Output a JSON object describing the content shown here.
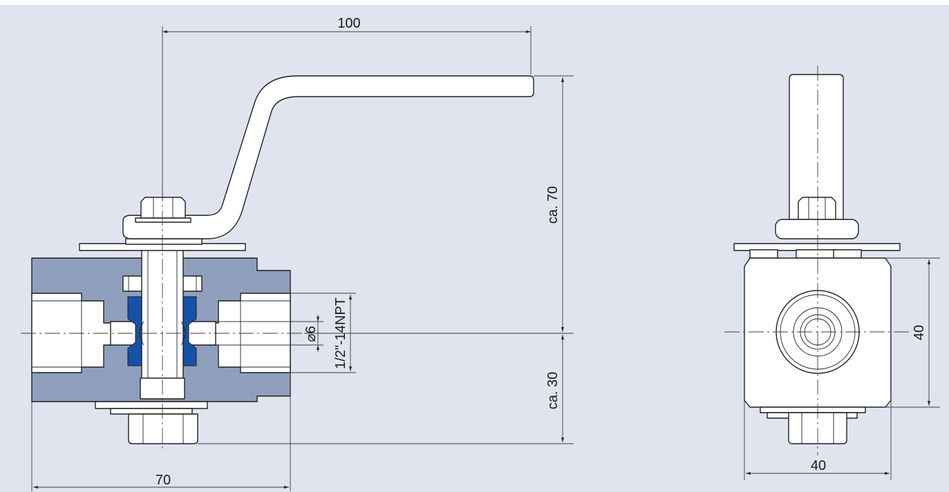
{
  "colors": {
    "background": "#dfe4ef",
    "valve_body": "#8f9fbe",
    "seat_seal": "#1652a8",
    "line": "#1f1f1f"
  },
  "dimensions": {
    "handle_length": "100",
    "height_above_axis": "ca. 70",
    "height_below_axis": "ca. 30",
    "body_length": "70",
    "bore_diameter": "⌀6",
    "thread": "1/2\"-14NPT",
    "side_height": "40",
    "side_width": "40"
  }
}
